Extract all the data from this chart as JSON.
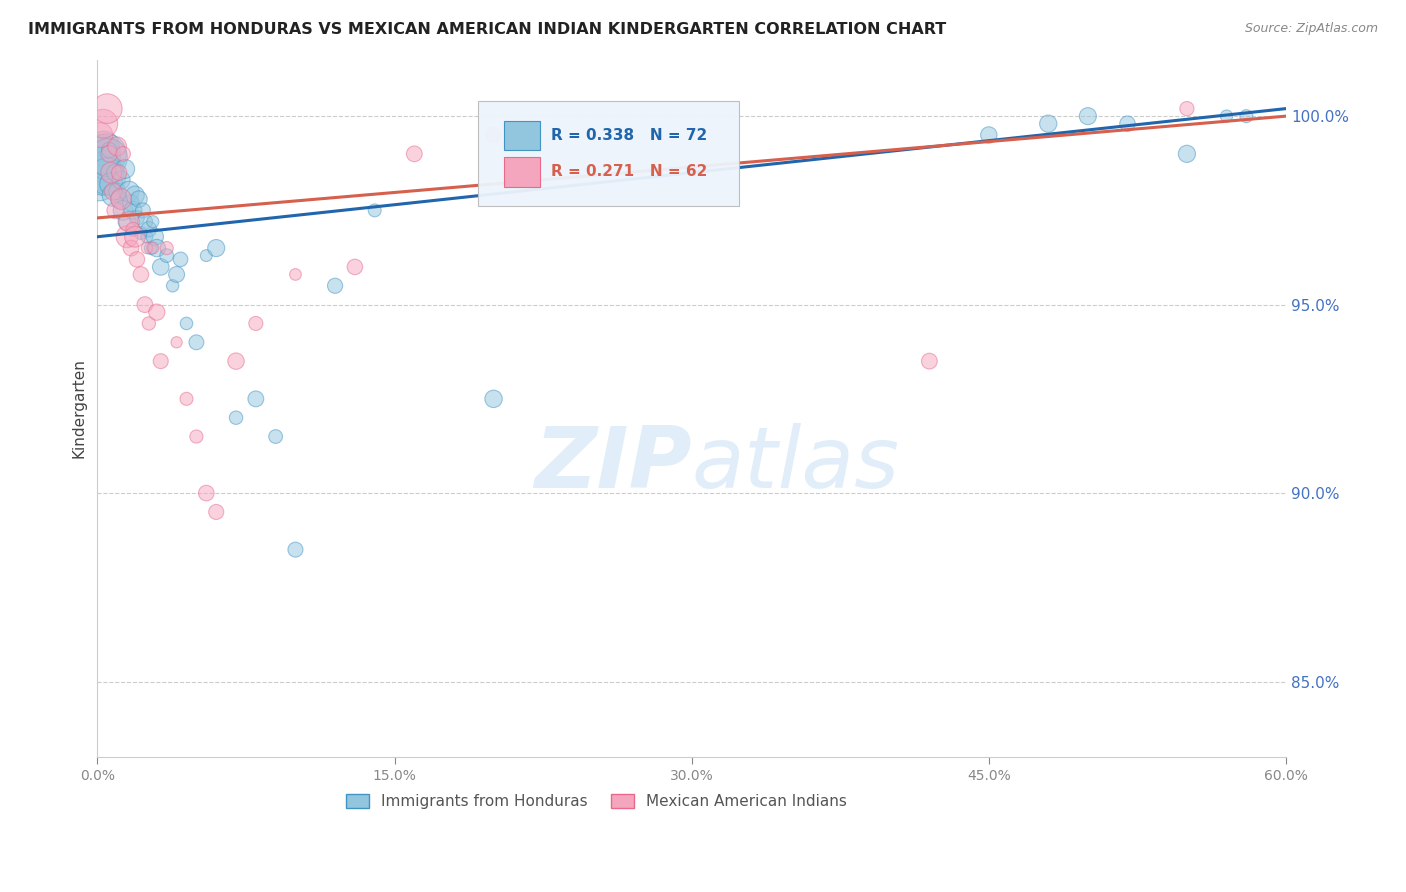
{
  "title": "IMMIGRANTS FROM HONDURAS VS MEXICAN AMERICAN INDIAN KINDERGARTEN CORRELATION CHART",
  "source": "Source: ZipAtlas.com",
  "ylabel": "Kindergarten",
  "xlim": [
    0.0,
    60.0
  ],
  "ylim": [
    83.0,
    101.5
  ],
  "yticks": [
    85.0,
    90.0,
    95.0,
    100.0
  ],
  "xticks": [
    0,
    15,
    30,
    45,
    60
  ],
  "xtick_labels": [
    "0.0%",
    "15.0%",
    "30.0%",
    "45.0%",
    "60.0%"
  ],
  "blue_R": 0.338,
  "blue_N": 72,
  "pink_R": 0.271,
  "pink_N": 62,
  "blue_color": "#92c5de",
  "pink_color": "#f4a6bf",
  "blue_edge_color": "#4393c3",
  "pink_edge_color": "#e8698a",
  "blue_line_color": "#2166ac",
  "pink_line_color": "#d6604d",
  "legend_label_blue": "Immigrants from Honduras",
  "legend_label_pink": "Mexican American Indians",
  "watermark_zip": "ZIP",
  "watermark_atlas": "atlas",
  "background_color": "#ffffff",
  "blue_x": [
    0.1,
    0.15,
    0.2,
    0.25,
    0.3,
    0.35,
    0.4,
    0.45,
    0.5,
    0.55,
    0.6,
    0.7,
    0.8,
    0.9,
    1.0,
    1.1,
    1.2,
    1.3,
    1.4,
    1.5,
    1.6,
    1.7,
    1.8,
    1.9,
    2.0,
    2.1,
    2.2,
    2.3,
    2.4,
    2.5,
    2.6,
    2.7,
    2.8,
    2.9,
    3.0,
    3.2,
    3.5,
    3.8,
    4.0,
    4.2,
    4.5,
    5.0,
    5.5,
    6.0,
    7.0,
    8.0,
    9.0,
    10.0,
    12.0,
    14.0,
    20.0,
    45.0,
    48.0,
    50.0,
    52.0,
    55.0,
    57.0,
    58.0
  ],
  "blue_y": [
    98.2,
    98.8,
    99.0,
    98.5,
    98.3,
    99.2,
    98.7,
    99.0,
    98.4,
    98.9,
    99.1,
    98.2,
    97.9,
    98.5,
    98.0,
    97.8,
    98.3,
    97.5,
    98.6,
    97.2,
    98.0,
    97.7,
    97.5,
    97.9,
    97.3,
    97.8,
    96.9,
    97.5,
    97.2,
    96.8,
    97.0,
    96.5,
    97.2,
    96.8,
    96.5,
    96.0,
    96.3,
    95.5,
    95.8,
    96.2,
    94.5,
    94.0,
    96.3,
    96.5,
    92.0,
    92.5,
    91.5,
    88.5,
    95.5,
    97.5,
    92.5,
    99.5,
    99.8,
    100.0,
    99.8,
    99.0,
    100.0,
    100.0
  ],
  "pink_x": [
    0.15,
    0.3,
    0.5,
    0.6,
    0.7,
    0.8,
    0.9,
    1.0,
    1.1,
    1.2,
    1.3,
    1.5,
    1.6,
    1.7,
    1.8,
    1.9,
    2.0,
    2.2,
    2.4,
    2.5,
    2.6,
    2.8,
    3.0,
    3.2,
    3.5,
    4.0,
    4.5,
    5.0,
    5.5,
    6.0,
    7.0,
    8.0,
    10.0,
    13.0,
    16.0,
    20.0,
    42.0,
    55.0
  ],
  "pink_y": [
    99.5,
    99.8,
    100.2,
    99.0,
    98.5,
    98.0,
    97.5,
    99.2,
    98.5,
    97.8,
    99.0,
    96.8,
    97.2,
    96.5,
    97.0,
    96.8,
    96.2,
    95.8,
    95.0,
    96.5,
    94.5,
    96.5,
    94.8,
    93.5,
    96.5,
    94.0,
    92.5,
    91.5,
    90.0,
    89.5,
    93.5,
    94.5,
    95.8,
    96.0,
    99.0,
    99.5,
    93.5,
    100.2
  ],
  "blue_trendline_x0": 0,
  "blue_trendline_y0": 96.8,
  "blue_trendline_x1": 60,
  "blue_trendline_y1": 100.2,
  "pink_trendline_x0": 0,
  "pink_trendline_y0": 97.3,
  "pink_trendline_x1": 60,
  "pink_trendline_y1": 100.0
}
